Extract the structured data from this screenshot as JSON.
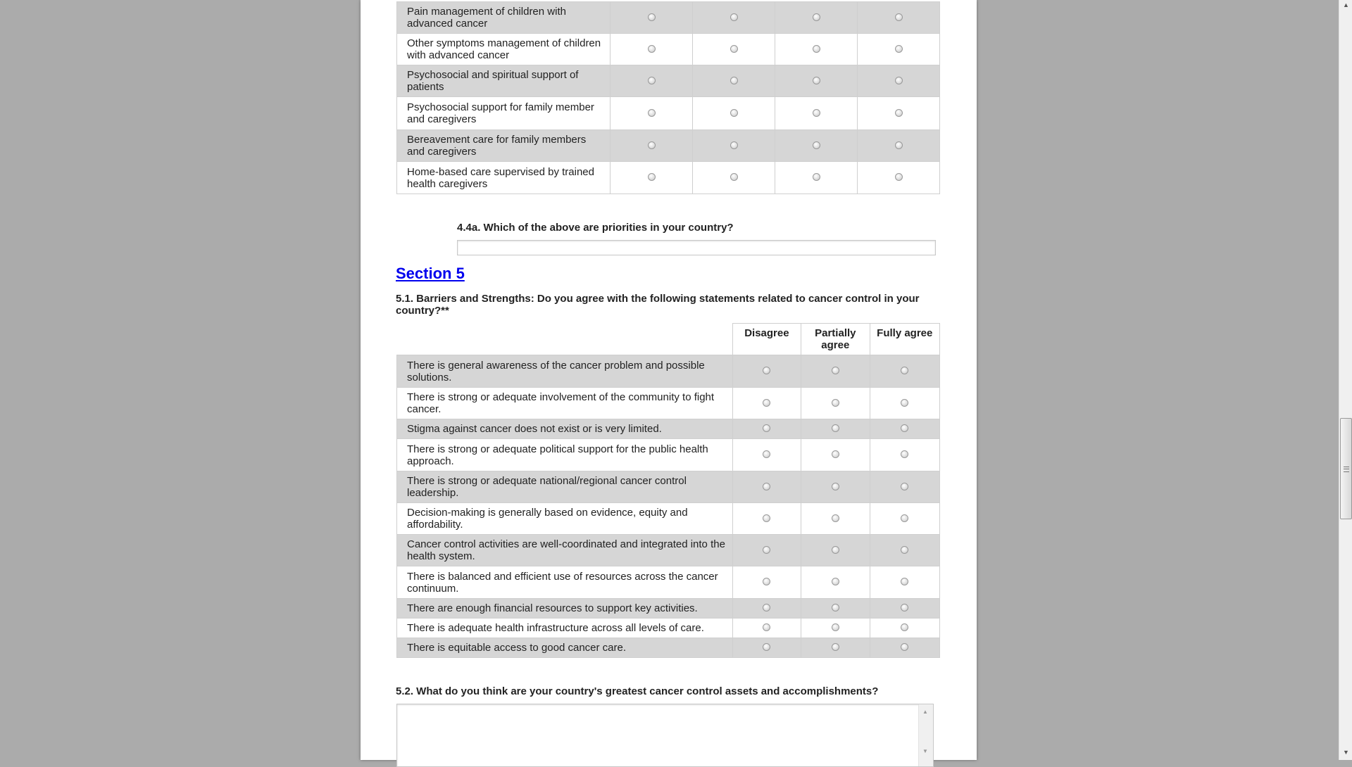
{
  "table_4_4": {
    "rows": [
      "Pain management of children with advanced cancer",
      "Other symptoms management of children with advanced cancer",
      "Psychosocial and spiritual support of patients",
      "Psychosocial support for family member and caregivers",
      "Bereavement care for family members and caregivers",
      "Home-based care supervised by trained health caregivers"
    ]
  },
  "q_4_4a": {
    "label": "4.4a. Which of the above are priorities in your country?",
    "value": ""
  },
  "section5": {
    "title": "Section 5"
  },
  "q_5_1": {
    "label": "5.1. Barriers and Strengths: Do you agree with the following statements related to cancer control in your country?**",
    "columns": [
      "Disagree",
      "Partially agree",
      "Fully agree"
    ],
    "rows": [
      "There is general awareness of the cancer problem and possible solutions.",
      "There is strong or adequate involvement of the community to fight cancer.",
      "Stigma against cancer does not exist or is very limited.",
      "There is strong or adequate political support for the public health approach.",
      "There is strong or adequate national/regional cancer control leadership.",
      "Decision-making is generally based on evidence, equity and affordability.",
      "Cancer control activities are well-coordinated and integrated into the health system.",
      "There is balanced and efficient use of resources across the cancer continuum.",
      "There are enough financial resources to support key activities.",
      "There is adequate health infrastructure across all levels of care.",
      "There is equitable access to good cancer care."
    ]
  },
  "q_5_2": {
    "label": "5.2. What do you think are your country's greatest cancer control assets and accomplishments?",
    "value": ""
  },
  "colors": {
    "background": "#ababab",
    "row_alt": "#d6d6d6",
    "link": "#0000ee"
  }
}
